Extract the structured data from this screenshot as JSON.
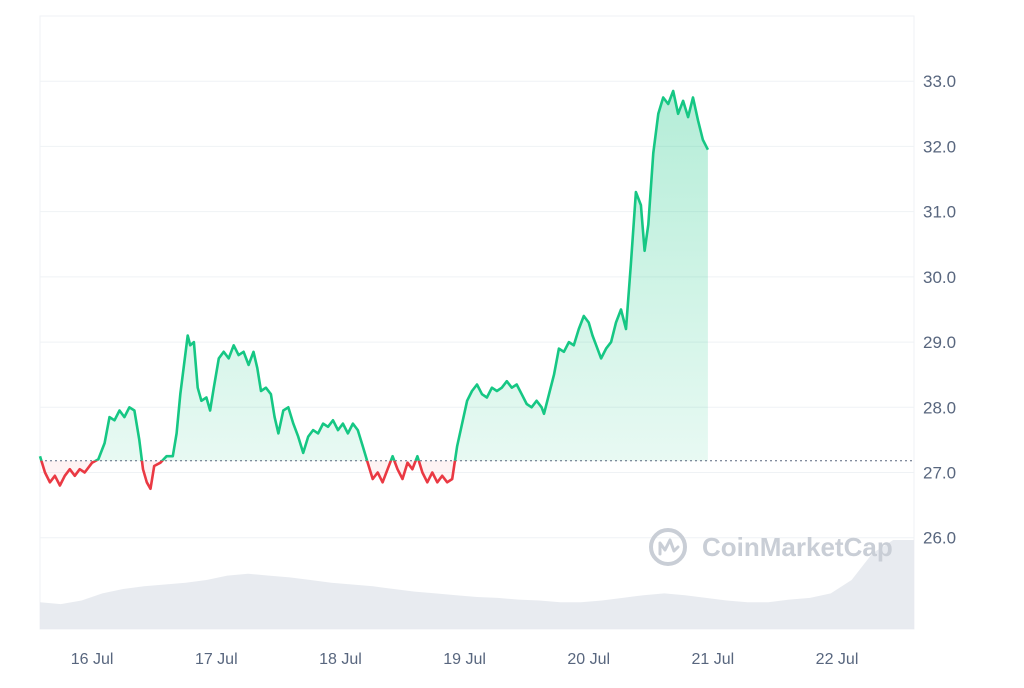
{
  "watermark": {
    "text": "CoinMarketCap",
    "icon": "coinmarketcap-logo-icon"
  },
  "colors": {
    "up": "#16c784",
    "down": "#ea3943",
    "grid": "#eff2f5",
    "baseline": "#58667e",
    "volume": "#e6e9ee",
    "axis_text": "#58667e"
  },
  "chart_data": {
    "type": "line",
    "title": "",
    "xlabel": "",
    "ylabel": "",
    "x_ticks": [
      "16 Jul",
      "17 Jul",
      "18 Jul",
      "19 Jul",
      "20 Jul",
      "21 Jul",
      "22 Jul"
    ],
    "y_ticks": [
      "26.0",
      "27.0",
      "28.0",
      "29.0",
      "30.0",
      "31.0",
      "32.0",
      "33.0"
    ],
    "ylim": [
      24.6,
      34.0
    ],
    "xlim_days": [
      15.58,
      22.62
    ],
    "baseline_value": 27.18,
    "legend": "none",
    "grid": true,
    "series": [
      {
        "points": [
          [
            15.58,
            27.25
          ],
          [
            15.62,
            27.0
          ],
          [
            15.66,
            26.85
          ],
          [
            15.7,
            26.95
          ],
          [
            15.74,
            26.8
          ],
          [
            15.78,
            26.95
          ],
          [
            15.82,
            27.05
          ],
          [
            15.86,
            26.95
          ],
          [
            15.9,
            27.05
          ],
          [
            15.94,
            27.0
          ],
          [
            16.0,
            27.15
          ],
          [
            16.05,
            27.2
          ],
          [
            16.1,
            27.45
          ],
          [
            16.14,
            27.85
          ],
          [
            16.18,
            27.8
          ],
          [
            16.22,
            27.95
          ],
          [
            16.26,
            27.85
          ],
          [
            16.3,
            28.0
          ],
          [
            16.34,
            27.95
          ],
          [
            16.38,
            27.5
          ],
          [
            16.41,
            27.05
          ],
          [
            16.44,
            26.85
          ],
          [
            16.47,
            26.75
          ],
          [
            16.5,
            27.1
          ],
          [
            16.55,
            27.15
          ],
          [
            16.6,
            27.25
          ],
          [
            16.65,
            27.25
          ],
          [
            16.68,
            27.6
          ],
          [
            16.71,
            28.2
          ],
          [
            16.74,
            28.65
          ],
          [
            16.77,
            29.1
          ],
          [
            16.79,
            28.95
          ],
          [
            16.82,
            29.0
          ],
          [
            16.85,
            28.3
          ],
          [
            16.88,
            28.1
          ],
          [
            16.92,
            28.15
          ],
          [
            16.95,
            27.95
          ],
          [
            16.98,
            28.3
          ],
          [
            17.02,
            28.75
          ],
          [
            17.06,
            28.85
          ],
          [
            17.1,
            28.75
          ],
          [
            17.14,
            28.95
          ],
          [
            17.18,
            28.8
          ],
          [
            17.22,
            28.85
          ],
          [
            17.26,
            28.65
          ],
          [
            17.3,
            28.85
          ],
          [
            17.33,
            28.6
          ],
          [
            17.36,
            28.25
          ],
          [
            17.4,
            28.3
          ],
          [
            17.44,
            28.2
          ],
          [
            17.47,
            27.85
          ],
          [
            17.5,
            27.6
          ],
          [
            17.54,
            27.95
          ],
          [
            17.58,
            28.0
          ],
          [
            17.62,
            27.75
          ],
          [
            17.66,
            27.55
          ],
          [
            17.7,
            27.3
          ],
          [
            17.74,
            27.55
          ],
          [
            17.78,
            27.65
          ],
          [
            17.82,
            27.6
          ],
          [
            17.86,
            27.75
          ],
          [
            17.9,
            27.7
          ],
          [
            17.94,
            27.8
          ],
          [
            17.98,
            27.65
          ],
          [
            18.02,
            27.75
          ],
          [
            18.06,
            27.6
          ],
          [
            18.1,
            27.75
          ],
          [
            18.14,
            27.65
          ],
          [
            18.18,
            27.4
          ],
          [
            18.22,
            27.15
          ],
          [
            18.26,
            26.9
          ],
          [
            18.3,
            27.0
          ],
          [
            18.34,
            26.85
          ],
          [
            18.38,
            27.05
          ],
          [
            18.42,
            27.25
          ],
          [
            18.46,
            27.05
          ],
          [
            18.5,
            26.9
          ],
          [
            18.54,
            27.15
          ],
          [
            18.58,
            27.05
          ],
          [
            18.62,
            27.25
          ],
          [
            18.66,
            27.0
          ],
          [
            18.7,
            26.85
          ],
          [
            18.74,
            27.0
          ],
          [
            18.78,
            26.85
          ],
          [
            18.82,
            26.95
          ],
          [
            18.86,
            26.85
          ],
          [
            18.9,
            26.9
          ],
          [
            18.94,
            27.4
          ],
          [
            18.98,
            27.75
          ],
          [
            19.02,
            28.1
          ],
          [
            19.06,
            28.25
          ],
          [
            19.1,
            28.35
          ],
          [
            19.14,
            28.2
          ],
          [
            19.18,
            28.15
          ],
          [
            19.22,
            28.3
          ],
          [
            19.26,
            28.25
          ],
          [
            19.3,
            28.3
          ],
          [
            19.34,
            28.4
          ],
          [
            19.38,
            28.3
          ],
          [
            19.42,
            28.35
          ],
          [
            19.46,
            28.2
          ],
          [
            19.5,
            28.05
          ],
          [
            19.54,
            28.0
          ],
          [
            19.58,
            28.1
          ],
          [
            19.62,
            28.0
          ],
          [
            19.64,
            27.9
          ],
          [
            19.68,
            28.2
          ],
          [
            19.72,
            28.5
          ],
          [
            19.76,
            28.9
          ],
          [
            19.8,
            28.85
          ],
          [
            19.84,
            29.0
          ],
          [
            19.88,
            28.95
          ],
          [
            19.92,
            29.2
          ],
          [
            19.96,
            29.4
          ],
          [
            20.0,
            29.3
          ],
          [
            20.03,
            29.1
          ],
          [
            20.06,
            28.95
          ],
          [
            20.1,
            28.75
          ],
          [
            20.14,
            28.9
          ],
          [
            20.18,
            29.0
          ],
          [
            20.22,
            29.3
          ],
          [
            20.26,
            29.5
          ],
          [
            20.3,
            29.2
          ],
          [
            20.34,
            30.2
          ],
          [
            20.38,
            31.3
          ],
          [
            20.42,
            31.1
          ],
          [
            20.45,
            30.4
          ],
          [
            20.48,
            30.8
          ],
          [
            20.52,
            31.9
          ],
          [
            20.56,
            32.5
          ],
          [
            20.6,
            32.75
          ],
          [
            20.64,
            32.65
          ],
          [
            20.68,
            32.85
          ],
          [
            20.72,
            32.5
          ],
          [
            20.76,
            32.7
          ],
          [
            20.8,
            32.45
          ],
          [
            20.84,
            32.75
          ],
          [
            20.88,
            32.4
          ],
          [
            20.92,
            32.1
          ],
          [
            20.96,
            31.95
          ]
        ]
      }
    ],
    "volume_series_relative": [
      0.3,
      0.28,
      0.32,
      0.4,
      0.45,
      0.48,
      0.5,
      0.52,
      0.55,
      0.6,
      0.62,
      0.6,
      0.58,
      0.55,
      0.52,
      0.5,
      0.48,
      0.45,
      0.42,
      0.4,
      0.38,
      0.36,
      0.35,
      0.33,
      0.32,
      0.3,
      0.3,
      0.32,
      0.35,
      0.38,
      0.4,
      0.38,
      0.35,
      0.32,
      0.3,
      0.3,
      0.33,
      0.35,
      0.4,
      0.55,
      0.85,
      1.0,
      1.0
    ]
  }
}
